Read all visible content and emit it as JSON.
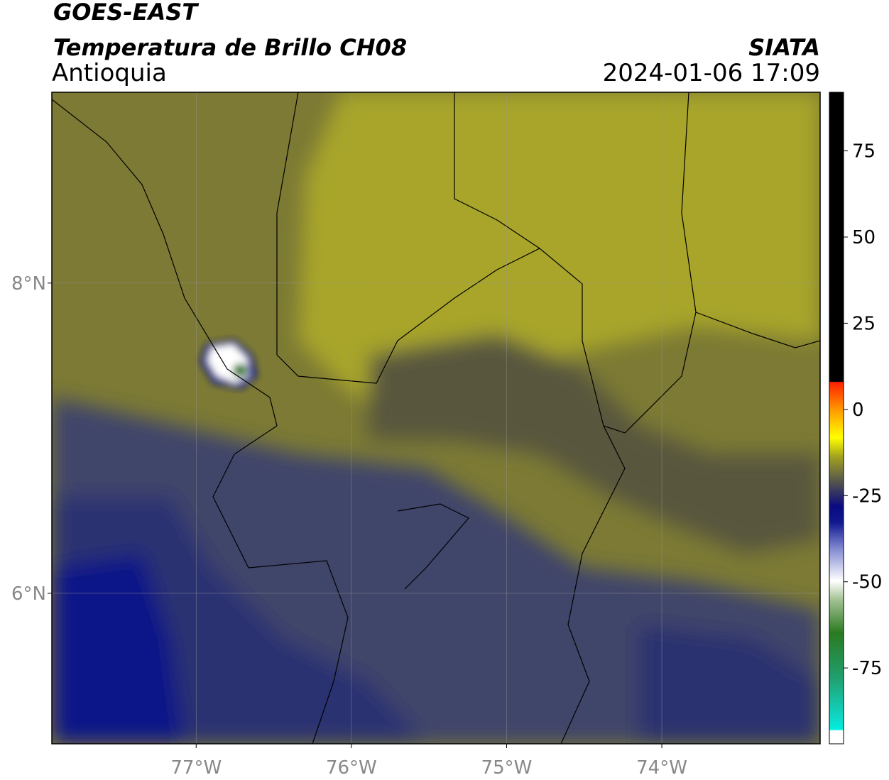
{
  "header": {
    "title": "GOES-EAST",
    "subtitle": "Temperatura de Brillo CH08",
    "region": "Antioquia",
    "source": "SIATA",
    "datetime": "2024-01-06 17:09"
  },
  "map": {
    "xlim": [
      -77.93,
      -72.98
    ],
    "ylim": [
      5.03,
      9.23
    ],
    "xticks": [
      {
        "value": -77,
        "label": "77°W"
      },
      {
        "value": -76,
        "label": "76°W"
      },
      {
        "value": -75,
        "label": "75°W"
      },
      {
        "value": -74,
        "label": "74°W"
      }
    ],
    "yticks": [
      {
        "value": 6,
        "label": "6°N"
      },
      {
        "value": 8,
        "label": "8°N"
      }
    ],
    "grid": true
  },
  "colorbar": {
    "lim": [
      -97,
      92
    ],
    "ticks": [
      -75,
      -50,
      -25,
      0,
      25,
      50,
      75
    ]
  }
}
